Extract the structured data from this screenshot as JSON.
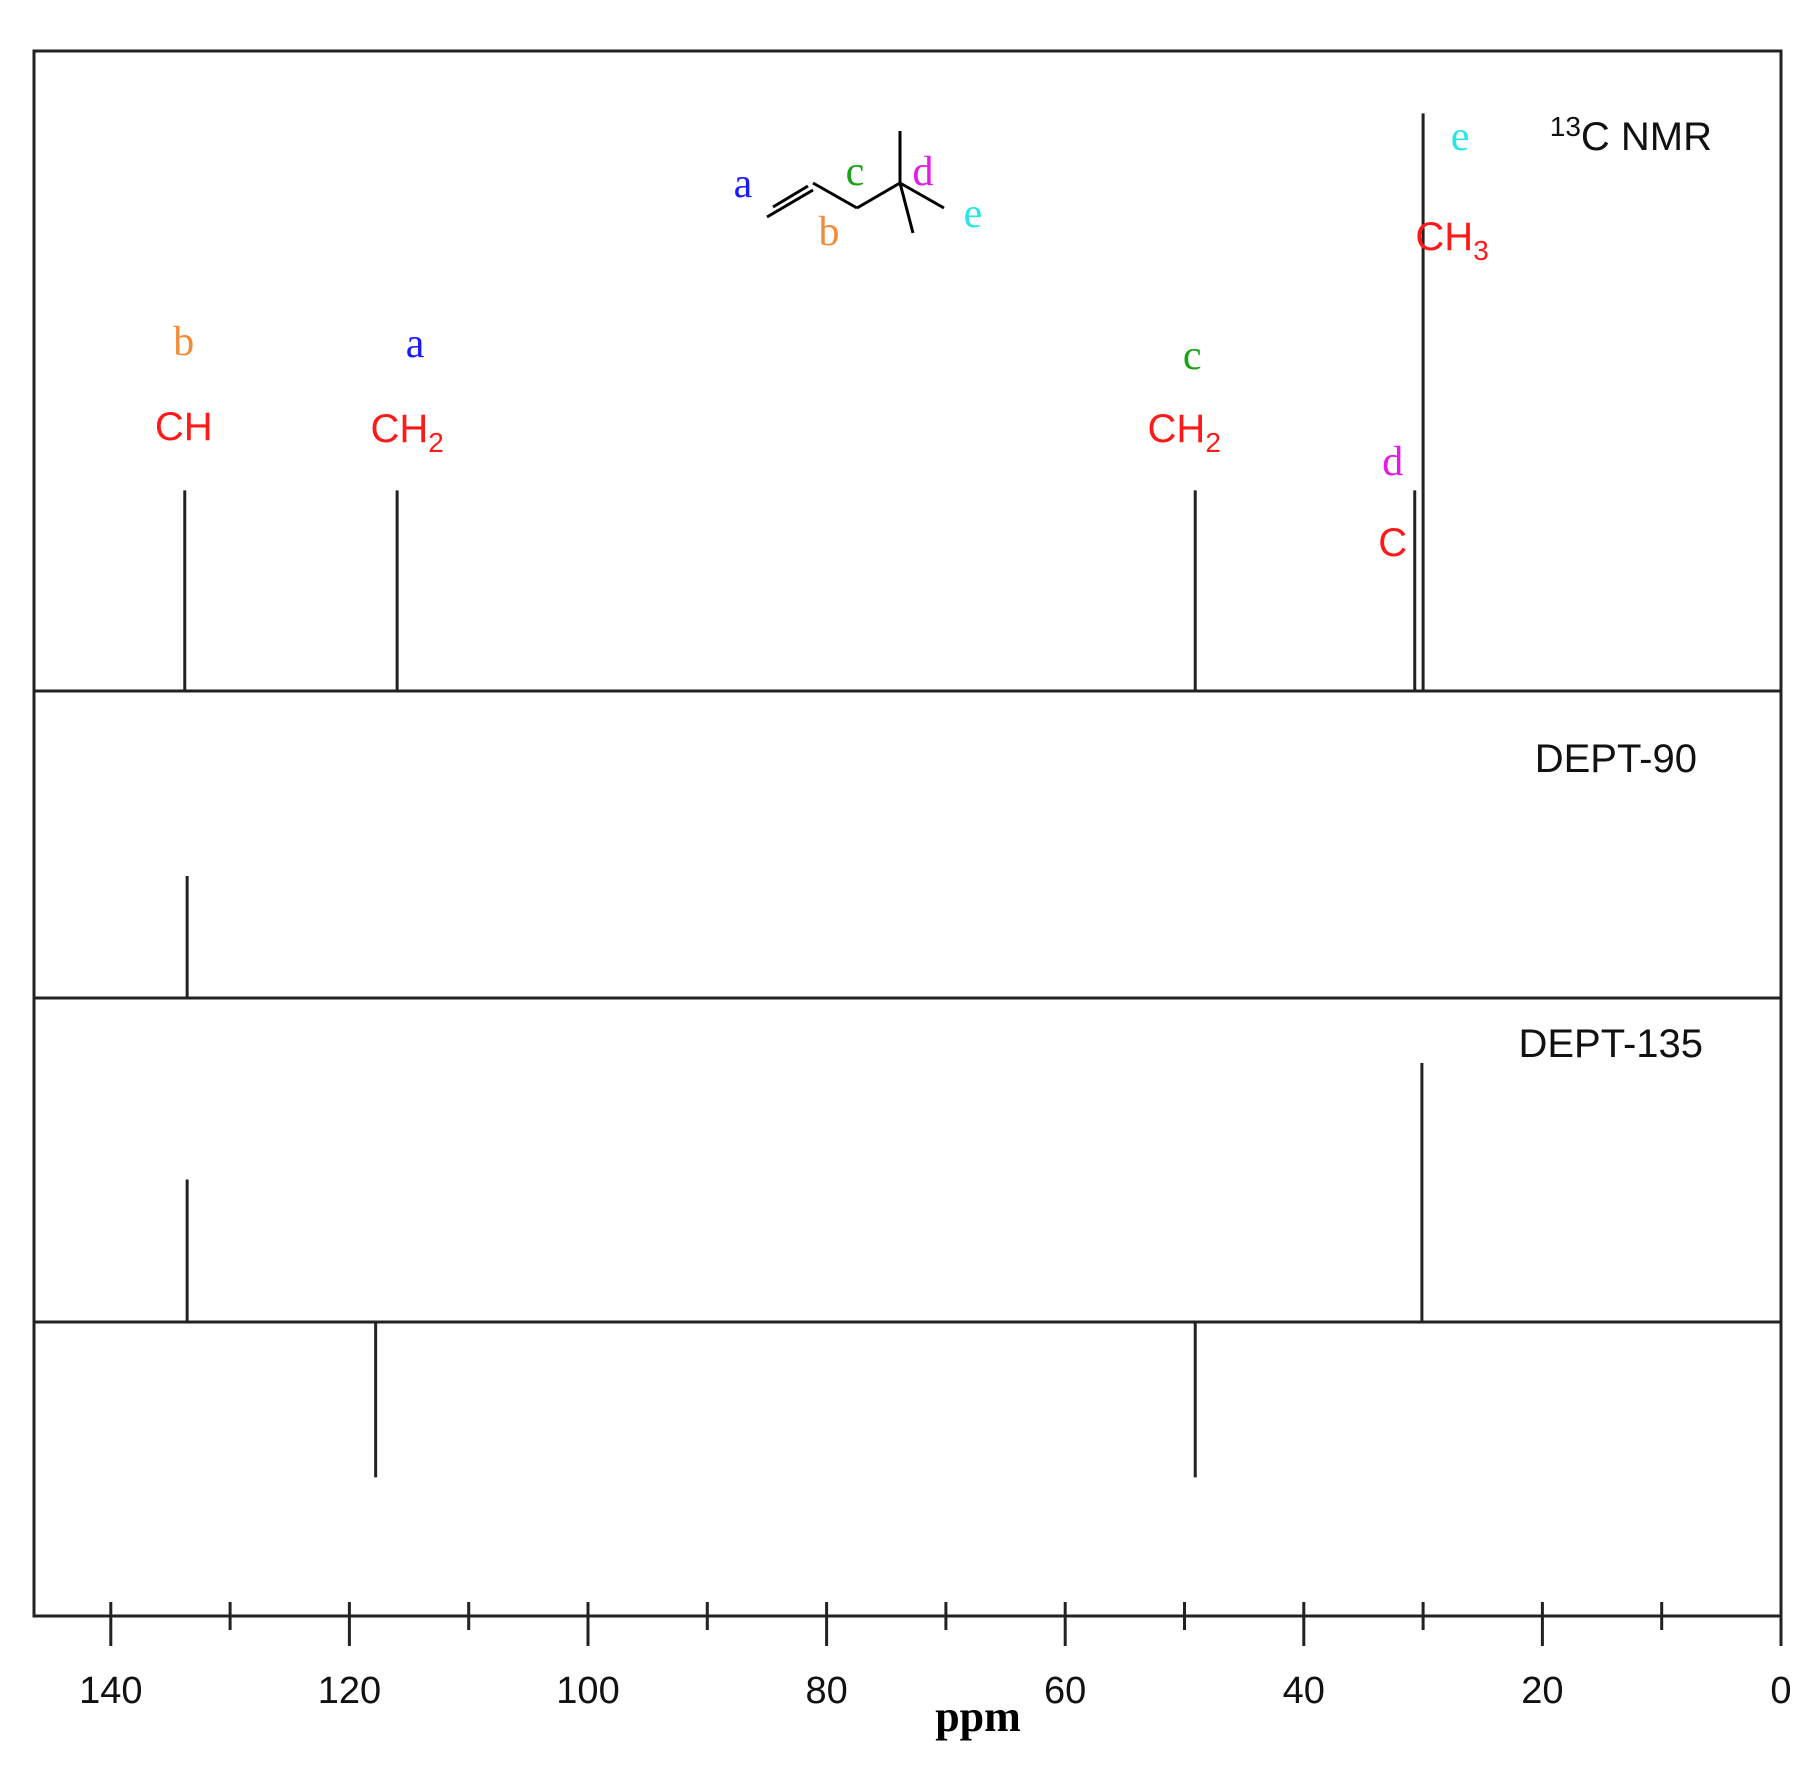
{
  "chart_data": [
    {
      "type": "bar",
      "panel": "13c",
      "title": "C NMR",
      "title_superscript": "13",
      "xlabel": "ppm",
      "xlim": [
        148,
        0
      ],
      "x_ticks": [
        140,
        120,
        100,
        80,
        60,
        40,
        20,
        0
      ],
      "ylim": [
        0,
        1
      ],
      "peaks": [
        {
          "ppm": 133.8,
          "intensity": 0.33,
          "letter": "b",
          "mult": "CH",
          "mult_sub": ""
        },
        {
          "ppm": 116.0,
          "intensity": 0.33,
          "letter": "a",
          "mult": "CH",
          "mult_sub": "2"
        },
        {
          "ppm": 49.1,
          "intensity": 0.33,
          "letter": "c",
          "mult": "CH",
          "mult_sub": "2"
        },
        {
          "ppm": 30.7,
          "intensity": 0.33,
          "letter": "d",
          "mult": "C",
          "mult_sub": ""
        },
        {
          "ppm": 30.0,
          "intensity": 0.95,
          "letter": "e",
          "mult": "CH",
          "mult_sub": "3"
        }
      ]
    },
    {
      "type": "bar",
      "panel": "dept90",
      "title": "DEPT-90",
      "xlim": [
        148,
        0
      ],
      "ylim": [
        0,
        1
      ],
      "peaks": [
        {
          "ppm": 133.6,
          "intensity": 0.5
        }
      ]
    },
    {
      "type": "bar",
      "panel": "dept135",
      "title": "DEPT-135",
      "xlim": [
        148,
        0
      ],
      "ylim": [
        -1,
        1
      ],
      "peaks": [
        {
          "ppm": 133.6,
          "intensity": 0.55
        },
        {
          "ppm": 117.8,
          "intensity": -0.6
        },
        {
          "ppm": 49.1,
          "intensity": -0.6
        },
        {
          "ppm": 30.1,
          "intensity": 1.0
        }
      ]
    }
  ],
  "structure": {
    "labels": [
      "a",
      "b",
      "c",
      "d",
      "e"
    ]
  },
  "colors": {
    "multiplicity": "#ff1a1a",
    "a": "#1a1aff",
    "b": "#f28c3c",
    "c": "#1aa31a",
    "d": "#e619e6",
    "e": "#26e6e6",
    "line": "#222222"
  }
}
